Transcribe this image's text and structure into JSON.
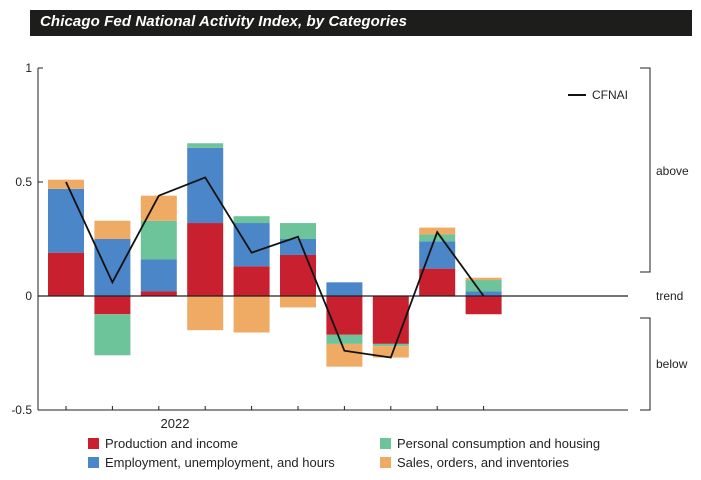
{
  "header": {
    "title": "Chicago Fed National Activity Index, by Categories"
  },
  "chart_data": {
    "type": "bar",
    "stacked": true,
    "title": "Chicago Fed National Activity Index, by Categories",
    "ylim": [
      -0.5,
      1
    ],
    "yticks": [
      "1",
      "0.5",
      "0",
      "-0.5"
    ],
    "ytick_values": [
      1,
      0.5,
      0,
      -0.5
    ],
    "x_year_label": "2022",
    "periods": 10,
    "series": [
      {
        "name": "Production and income",
        "color": "#c8202f",
        "values": [
          0.19,
          -0.08,
          0.02,
          0.32,
          0.13,
          0.18,
          -0.17,
          -0.21,
          0.12,
          -0.08
        ]
      },
      {
        "name": "Employment, unemployment, and hours",
        "color": "#4a86c8",
        "values": [
          0.28,
          0.25,
          0.14,
          0.33,
          0.19,
          0.07,
          0.06,
          0.0,
          0.12,
          0.02
        ]
      },
      {
        "name": "Personal consumption and housing",
        "color": "#6dc39a",
        "values": [
          0.0,
          -0.18,
          0.17,
          0.02,
          0.03,
          0.07,
          -0.04,
          -0.01,
          0.03,
          0.05
        ]
      },
      {
        "name": "Sales, orders, and inventories",
        "color": "#efab63",
        "values": [
          0.04,
          0.08,
          0.11,
          -0.15,
          -0.16,
          -0.05,
          -0.1,
          -0.05,
          0.03,
          0.01
        ]
      }
    ],
    "line": {
      "name": "CFNAI",
      "color": "#111111",
      "values": [
        0.5,
        0.06,
        0.44,
        0.52,
        0.19,
        0.26,
        -0.24,
        -0.27,
        0.28,
        0.0
      ]
    },
    "annotations": {
      "above": "above",
      "trend": "trend",
      "below": "below"
    }
  }
}
